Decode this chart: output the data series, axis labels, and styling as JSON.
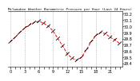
{
  "title": "Milwaukee Weather Barometric Pressure per Hour (Last 24 Hours)",
  "hours": [
    0,
    1,
    2,
    3,
    4,
    5,
    6,
    7,
    8,
    9,
    10,
    11,
    12,
    13,
    14,
    15,
    16,
    17,
    18,
    19,
    20,
    21,
    22,
    23
  ],
  "pressure": [
    29.75,
    29.82,
    29.9,
    29.97,
    30.02,
    30.06,
    30.08,
    30.05,
    30.0,
    29.92,
    29.8,
    29.68,
    29.55,
    29.48,
    29.45,
    29.5,
    29.62,
    29.75,
    29.85,
    29.9,
    29.88,
    29.82,
    29.78,
    29.72
  ],
  "line_color": "#ff0000",
  "tick_color": "#000000",
  "background_color": "#ffffff",
  "grid_color": "#999999",
  "ylim_min": 29.35,
  "ylim_max": 30.25,
  "ytick_values": [
    29.4,
    29.5,
    29.6,
    29.7,
    29.8,
    29.9,
    30.0,
    30.1,
    30.2
  ],
  "ytick_labels": [
    "29.4",
    "29.5",
    "29.6",
    "29.7",
    "29.8",
    "29.9",
    "30.0",
    "30.1",
    "30.2"
  ],
  "font_size": 3.5,
  "title_font_size": 3.0
}
